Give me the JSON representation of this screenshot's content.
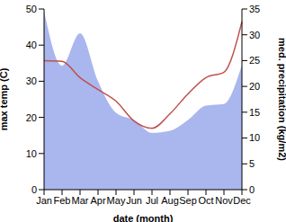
{
  "chart_data": {
    "type": "line",
    "xlabel": "date (month)",
    "ylabel": "max temp (C)",
    "y2label": "med. precipitation (kg/m2)",
    "categories": [
      "Jan",
      "Feb",
      "Mar",
      "Apr",
      "May",
      "Jun",
      "Jul",
      "Aug",
      "Sep",
      "Oct",
      "Nov",
      "Dec"
    ],
    "ylim": [
      0,
      50
    ],
    "yticks": [
      0,
      10,
      20,
      30,
      40,
      50
    ],
    "y2lim": [
      0,
      35
    ],
    "y2ticks": [
      0,
      5,
      10,
      15,
      20,
      25,
      30,
      35
    ],
    "grid": false,
    "series": [
      {
        "type": "area",
        "axis": "y2",
        "color": "#aab6ee",
        "values": [
          34.6,
          24,
          30.3,
          21,
          14.9,
          13.5,
          11,
          11.4,
          13.5,
          16.3,
          16.6,
          24.2
        ]
      },
      {
        "type": "line",
        "color": "#c0504d",
        "values": [
          35.7,
          35.5,
          31,
          27.7,
          24.5,
          19,
          17,
          21,
          26.5,
          31,
          32.5,
          46.5
        ]
      }
    ]
  }
}
